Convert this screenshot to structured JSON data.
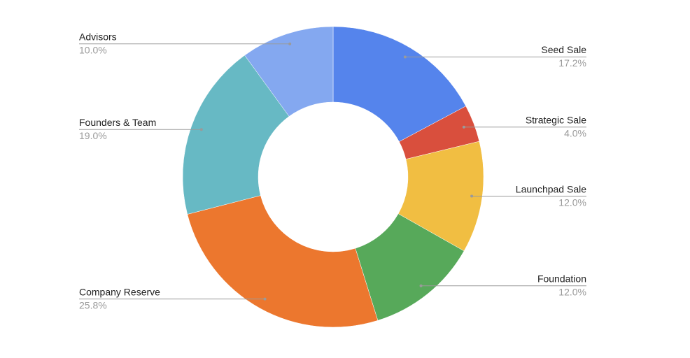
{
  "chart_data": {
    "type": "pie",
    "donut": true,
    "categories": [
      "Seed Sale",
      "Strategic Sale",
      "Launchpad Sale",
      "Foundation",
      "Company Reserve",
      "Founders & Team",
      "Advisors"
    ],
    "values": [
      17.2,
      4.0,
      12.0,
      12.0,
      25.8,
      19.0,
      10.0
    ],
    "value_labels": [
      "17.2%",
      "4.0%",
      "12.0%",
      "12.0%",
      "25.8%",
      "19.0%",
      "10.0%"
    ],
    "colors": [
      "#5584ec",
      "#d94f3d",
      "#f1be42",
      "#57a95a",
      "#ec772e",
      "#67b9c4",
      "#84a8f0"
    ]
  }
}
